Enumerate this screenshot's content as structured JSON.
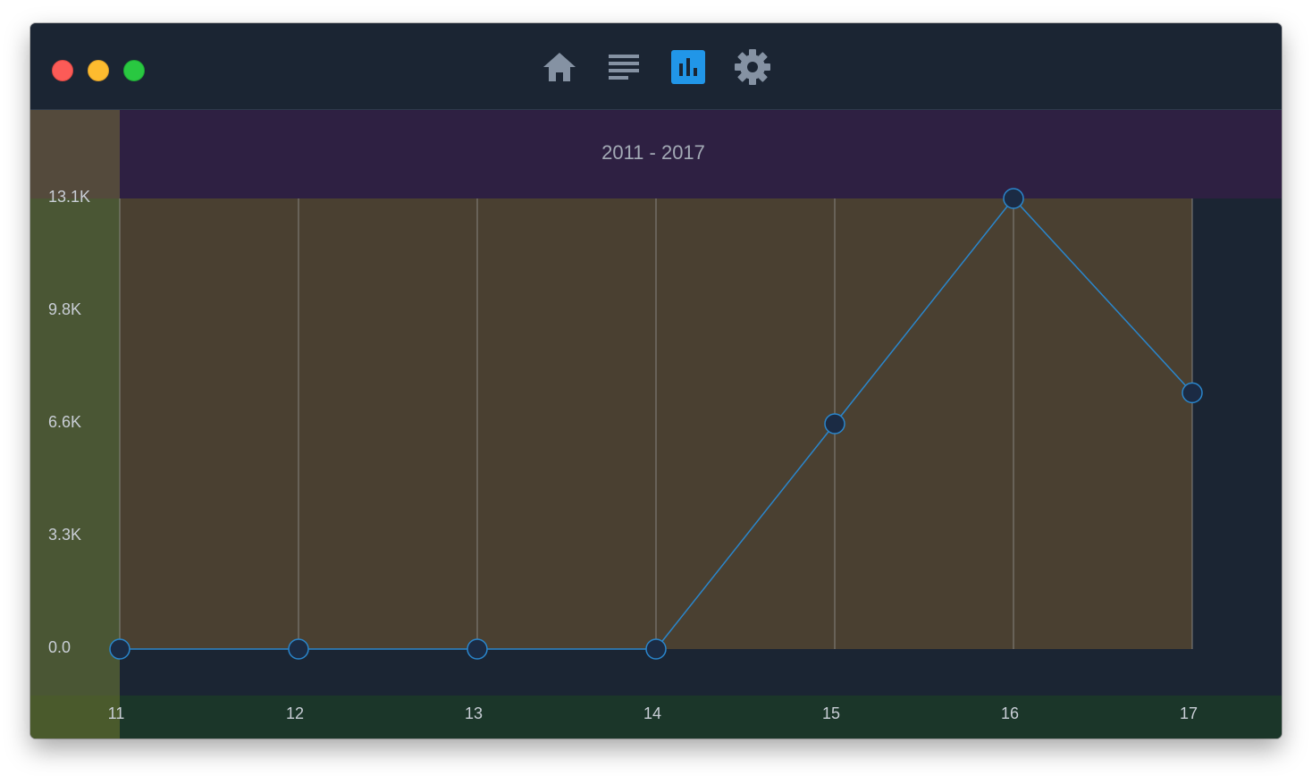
{
  "window": {
    "controls": [
      "close",
      "minimize",
      "zoom"
    ]
  },
  "toolbar": {
    "items": [
      {
        "icon": "home-icon",
        "active": false
      },
      {
        "icon": "list-icon",
        "active": false
      },
      {
        "icon": "bar-chart-icon",
        "active": true
      },
      {
        "icon": "gear-icon",
        "active": false
      }
    ],
    "icon_color": "#8592a3",
    "active_color": "#2196e8"
  },
  "colors": {
    "background": "#1b2533",
    "plot_fill": "#4a4031",
    "title_band": "#2e2042",
    "y_axis_band": "#4a5634",
    "x_axis_band": "#1b3629",
    "corner_top": "#544a3c",
    "corner_bottom": "#4a5a2c",
    "line": "#2a86cc",
    "marker_fill": "#1b2b44",
    "gridline": "#9a9a9a"
  },
  "chart_data": {
    "type": "line",
    "title": "2011 - 2017",
    "xlabel": "",
    "ylabel": "",
    "categories": [
      "11",
      "12",
      "13",
      "14",
      "15",
      "16",
      "17"
    ],
    "series": [
      {
        "values": [
          0,
          0,
          0,
          0,
          6550,
          13100,
          7450
        ]
      }
    ],
    "yticks": [
      "0.0",
      "3.3K",
      "6.6K",
      "9.8K",
      "13.1K"
    ],
    "ylim": [
      0,
      13100
    ],
    "grid": "vertical"
  }
}
